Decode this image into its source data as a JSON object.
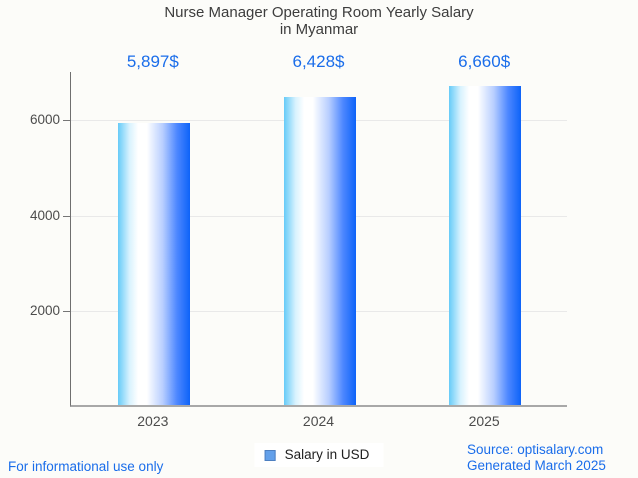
{
  "title": {
    "line1": "Nurse Manager Operating Room Yearly Salary",
    "line2": "in Myanmar"
  },
  "chart_data": {
    "type": "bar",
    "title": "Nurse Manager Operating Room Yearly Salary in Myanmar",
    "categories": [
      "2023",
      "2024",
      "2025"
    ],
    "series": [
      {
        "name": "Salary in USD",
        "values": [
          5897,
          6428,
          6660
        ]
      }
    ],
    "value_labels": [
      "5,897$",
      "6,428$",
      "6,660$"
    ],
    "xlabel": "",
    "ylabel": "",
    "ylim": [
      0,
      7000
    ],
    "yticks": [
      2000,
      4000,
      6000
    ],
    "grid": true,
    "legend_position": "bottom",
    "bar_gradient": {
      "left": "#66cbf8",
      "middle": "#ffffff",
      "right": "#0d63f8"
    }
  },
  "legend": {
    "label": "Salary in USD",
    "swatch_color": "#63a0ea"
  },
  "footer": {
    "disclaimer": "For informational use only",
    "source": "Source: optisalary.com",
    "generated": "Generated March 2025"
  },
  "colors": {
    "accent_text": "#1a6dea",
    "title_text": "#3d3d3d",
    "axis_text": "#4c4c4c",
    "axis_line": "#6f6f6f",
    "baseline": "#a8a8a8",
    "gridline": "#e9e9e9",
    "background": "#fcfcf9",
    "legend_text": "#1f1f1f"
  }
}
